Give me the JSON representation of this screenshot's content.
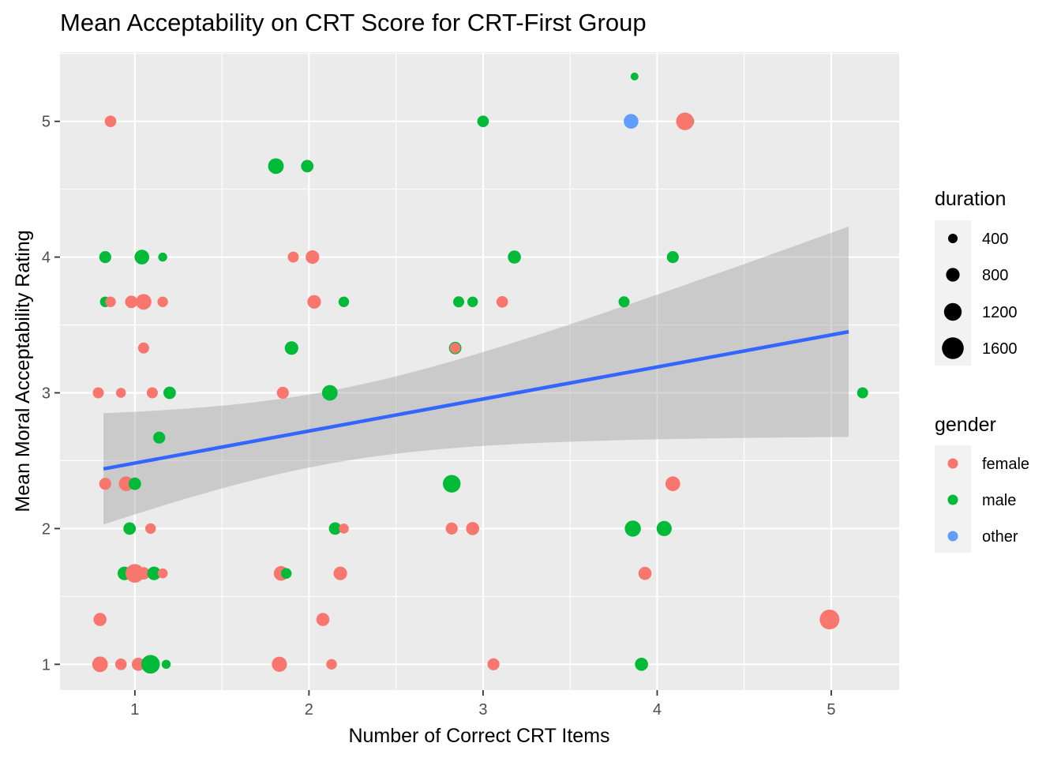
{
  "chart_data": {
    "type": "scatter",
    "title": "Mean Acceptability on CRT Score for CRT-First Group",
    "xlabel": "Number of Correct CRT Items",
    "ylabel": "Mean Moral Acceptability Rating",
    "xlim": [
      0.57,
      5.39
    ],
    "ylim": [
      0.81,
      5.51
    ],
    "x_ticks": [
      "1",
      "2",
      "3",
      "4",
      "5"
    ],
    "y_ticks": [
      "1",
      "2",
      "3",
      "4",
      "5"
    ],
    "grid": true,
    "legends": {
      "size": {
        "title": "duration",
        "entries": [
          {
            "label": "400",
            "value": 400
          },
          {
            "label": "800",
            "value": 800
          },
          {
            "label": "1200",
            "value": 1200
          },
          {
            "label": "1600",
            "value": 1600
          }
        ]
      },
      "color": {
        "title": "gender",
        "entries": [
          {
            "label": "female",
            "color": "#F8766D"
          },
          {
            "label": "male",
            "color": "#00BA38"
          },
          {
            "label": "other",
            "color": "#619CFF"
          }
        ]
      },
      "placement": "right"
    },
    "trend": {
      "method": "linear",
      "x": [
        0.82,
        5.1
      ],
      "y": [
        2.44,
        3.45
      ],
      "ci_lower": [
        2.03,
        2.67
      ],
      "ci_upper": [
        2.85,
        4.22
      ],
      "line_color": "#3366FF",
      "band_color": "#999999"
    },
    "points": [
      {
        "x": 0.86,
        "y": 5.0,
        "gender": "female",
        "duration": 600
      },
      {
        "x": 3.0,
        "y": 5.0,
        "gender": "male",
        "duration": 600
      },
      {
        "x": 3.85,
        "y": 5.0,
        "gender": "other",
        "duration": 900
      },
      {
        "x": 4.18,
        "y": 5.0,
        "gender": "male",
        "duration": 600
      },
      {
        "x": 4.16,
        "y": 5.0,
        "gender": "female",
        "duration": 1200
      },
      {
        "x": 3.87,
        "y": 5.33,
        "gender": "male",
        "duration": 250
      },
      {
        "x": 1.81,
        "y": 4.67,
        "gender": "male",
        "duration": 1000
      },
      {
        "x": 1.99,
        "y": 4.67,
        "gender": "male",
        "duration": 700
      },
      {
        "x": 0.83,
        "y": 4.0,
        "gender": "male",
        "duration": 650
      },
      {
        "x": 1.04,
        "y": 4.0,
        "gender": "male",
        "duration": 900
      },
      {
        "x": 1.16,
        "y": 4.0,
        "gender": "male",
        "duration": 350
      },
      {
        "x": 1.91,
        "y": 4.0,
        "gender": "female",
        "duration": 550
      },
      {
        "x": 2.02,
        "y": 4.0,
        "gender": "female",
        "duration": 800
      },
      {
        "x": 3.18,
        "y": 4.0,
        "gender": "male",
        "duration": 750
      },
      {
        "x": 4.09,
        "y": 4.0,
        "gender": "male",
        "duration": 650
      },
      {
        "x": 0.83,
        "y": 3.67,
        "gender": "male",
        "duration": 500
      },
      {
        "x": 0.86,
        "y": 3.67,
        "gender": "female",
        "duration": 500
      },
      {
        "x": 0.98,
        "y": 3.67,
        "gender": "female",
        "duration": 700
      },
      {
        "x": 1.05,
        "y": 3.67,
        "gender": "female",
        "duration": 1000
      },
      {
        "x": 1.16,
        "y": 3.67,
        "gender": "female",
        "duration": 500
      },
      {
        "x": 2.03,
        "y": 3.67,
        "gender": "female",
        "duration": 800
      },
      {
        "x": 2.2,
        "y": 3.67,
        "gender": "male",
        "duration": 500
      },
      {
        "x": 2.86,
        "y": 3.67,
        "gender": "male",
        "duration": 550
      },
      {
        "x": 2.94,
        "y": 3.67,
        "gender": "male",
        "duration": 500
      },
      {
        "x": 3.11,
        "y": 3.67,
        "gender": "female",
        "duration": 600
      },
      {
        "x": 3.81,
        "y": 3.67,
        "gender": "male",
        "duration": 550
      },
      {
        "x": 1.05,
        "y": 3.33,
        "gender": "female",
        "duration": 550
      },
      {
        "x": 1.9,
        "y": 3.33,
        "gender": "male",
        "duration": 800
      },
      {
        "x": 2.84,
        "y": 3.33,
        "gender": "male",
        "duration": 700
      },
      {
        "x": 2.84,
        "y": 3.33,
        "gender": "female",
        "duration": 500
      },
      {
        "x": 0.79,
        "y": 3.0,
        "gender": "female",
        "duration": 550
      },
      {
        "x": 0.92,
        "y": 3.0,
        "gender": "female",
        "duration": 450
      },
      {
        "x": 1.1,
        "y": 3.0,
        "gender": "female",
        "duration": 550
      },
      {
        "x": 1.2,
        "y": 3.0,
        "gender": "male",
        "duration": 700
      },
      {
        "x": 1.85,
        "y": 3.0,
        "gender": "female",
        "duration": 650
      },
      {
        "x": 2.12,
        "y": 3.0,
        "gender": "male",
        "duration": 1000
      },
      {
        "x": 5.18,
        "y": 3.0,
        "gender": "male",
        "duration": 550
      },
      {
        "x": 1.14,
        "y": 2.67,
        "gender": "male",
        "duration": 650
      },
      {
        "x": 0.83,
        "y": 2.33,
        "gender": "female",
        "duration": 650
      },
      {
        "x": 0.95,
        "y": 2.33,
        "gender": "female",
        "duration": 900
      },
      {
        "x": 1.0,
        "y": 2.33,
        "gender": "male",
        "duration": 700
      },
      {
        "x": 2.82,
        "y": 2.33,
        "gender": "male",
        "duration": 1200
      },
      {
        "x": 4.09,
        "y": 2.33,
        "gender": "female",
        "duration": 900
      },
      {
        "x": 0.97,
        "y": 2.0,
        "gender": "male",
        "duration": 700
      },
      {
        "x": 1.09,
        "y": 2.0,
        "gender": "female",
        "duration": 500
      },
      {
        "x": 2.15,
        "y": 2.0,
        "gender": "male",
        "duration": 700
      },
      {
        "x": 2.2,
        "y": 2.0,
        "gender": "female",
        "duration": 450
      },
      {
        "x": 2.82,
        "y": 2.0,
        "gender": "female",
        "duration": 650
      },
      {
        "x": 2.94,
        "y": 2.0,
        "gender": "female",
        "duration": 750
      },
      {
        "x": 3.86,
        "y": 2.0,
        "gender": "male",
        "duration": 1050
      },
      {
        "x": 4.04,
        "y": 2.0,
        "gender": "male",
        "duration": 950
      },
      {
        "x": 0.94,
        "y": 1.67,
        "gender": "male",
        "duration": 800
      },
      {
        "x": 1.0,
        "y": 1.67,
        "gender": "female",
        "duration": 1300
      },
      {
        "x": 1.05,
        "y": 1.67,
        "gender": "female",
        "duration": 700
      },
      {
        "x": 1.11,
        "y": 1.67,
        "gender": "male",
        "duration": 800
      },
      {
        "x": 1.16,
        "y": 1.67,
        "gender": "female",
        "duration": 450
      },
      {
        "x": 1.84,
        "y": 1.67,
        "gender": "female",
        "duration": 900
      },
      {
        "x": 1.87,
        "y": 1.67,
        "gender": "male",
        "duration": 500
      },
      {
        "x": 2.18,
        "y": 1.67,
        "gender": "female",
        "duration": 800
      },
      {
        "x": 3.93,
        "y": 1.67,
        "gender": "female",
        "duration": 750
      },
      {
        "x": 0.8,
        "y": 1.33,
        "gender": "female",
        "duration": 750
      },
      {
        "x": 2.08,
        "y": 1.33,
        "gender": "female",
        "duration": 750
      },
      {
        "x": 4.99,
        "y": 1.33,
        "gender": "female",
        "duration": 1400
      },
      {
        "x": 0.8,
        "y": 1.0,
        "gender": "female",
        "duration": 1000
      },
      {
        "x": 0.92,
        "y": 1.0,
        "gender": "female",
        "duration": 600
      },
      {
        "x": 1.02,
        "y": 1.0,
        "gender": "female",
        "duration": 750
      },
      {
        "x": 1.09,
        "y": 1.0,
        "gender": "male",
        "duration": 1300
      },
      {
        "x": 1.18,
        "y": 1.0,
        "gender": "male",
        "duration": 350
      },
      {
        "x": 1.83,
        "y": 1.0,
        "gender": "female",
        "duration": 950
      },
      {
        "x": 2.13,
        "y": 1.0,
        "gender": "female",
        "duration": 500
      },
      {
        "x": 3.06,
        "y": 1.0,
        "gender": "female",
        "duration": 650
      },
      {
        "x": 3.91,
        "y": 1.0,
        "gender": "male",
        "duration": 750
      }
    ]
  }
}
